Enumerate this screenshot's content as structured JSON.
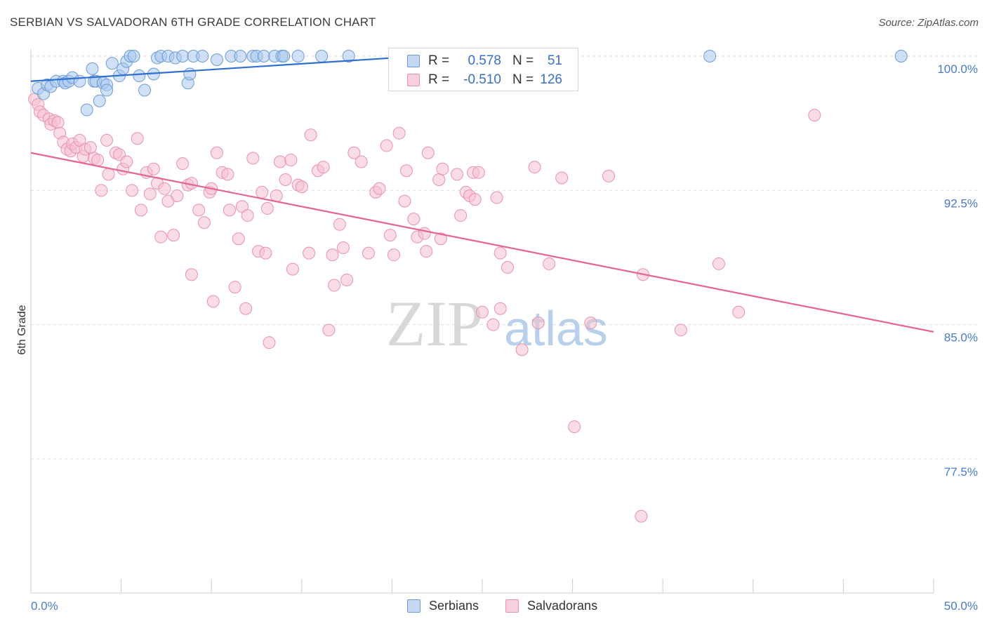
{
  "title": "SERBIAN VS SALVADORAN 6TH GRADE CORRELATION CHART",
  "source": "Source: ZipAtlas.com",
  "watermark": {
    "zip": "ZIP",
    "atlas": "atlas"
  },
  "colors": {
    "serbians_fill": "#aac8ee",
    "serbians_stroke": "#6f9ad8",
    "serbians_line": "#2f6fd0",
    "salvadorans_fill": "#f5bfd0",
    "salvadorans_stroke": "#e792ae",
    "salvadorans_line": "#e5658f",
    "grid": "#dedede",
    "axis": "#cccccc",
    "tick_text": "#4a7bc8"
  },
  "stats": {
    "serbians": {
      "r_label": "R =",
      "r_value": "0.578",
      "n_label": "N =",
      "n_value": "51"
    },
    "salvadorans": {
      "r_label": "R =",
      "r_value": "-0.510",
      "n_label": "N =",
      "n_value": "126"
    }
  },
  "legend": {
    "serbians": "Serbians",
    "salvadorans": "Salvadorans"
  },
  "chart_data": {
    "type": "scatter",
    "title": "SERBIAN VS SALVADORAN 6TH GRADE CORRELATION CHART",
    "xlabel": "",
    "ylabel": "6th Grade",
    "xlim": [
      0,
      50
    ],
    "ylim": [
      70.0,
      101.5
    ],
    "x_tick_labels": [
      {
        "value": 0,
        "label": "0.0%"
      },
      {
        "value": 50,
        "label": "50.0%"
      }
    ],
    "y_tick_labels": [
      {
        "value": 100.0,
        "label": "100.0%"
      },
      {
        "value": 92.5,
        "label": "92.5%"
      },
      {
        "value": 85.0,
        "label": "85.0%"
      },
      {
        "value": 77.5,
        "label": "77.5%"
      }
    ],
    "series": [
      {
        "name": "Serbians",
        "trend": {
          "x": [
            0,
            20
          ],
          "y": [
            98.6,
            99.9
          ]
        },
        "points": [
          [
            0.4,
            98.2
          ],
          [
            0.7,
            97.9
          ],
          [
            0.9,
            98.4
          ],
          [
            1.1,
            98.3
          ],
          [
            1.4,
            98.6
          ],
          [
            1.8,
            98.6
          ],
          [
            1.9,
            98.5
          ],
          [
            2.1,
            98.6
          ],
          [
            2.3,
            98.8
          ],
          [
            2.7,
            98.6
          ],
          [
            3.1,
            97.0
          ],
          [
            3.4,
            99.3
          ],
          [
            3.5,
            98.6
          ],
          [
            3.6,
            98.6
          ],
          [
            3.8,
            97.5
          ],
          [
            4.0,
            98.5
          ],
          [
            4.2,
            98.4
          ],
          [
            4.2,
            98.1
          ],
          [
            4.5,
            99.6
          ],
          [
            4.9,
            98.9
          ],
          [
            5.1,
            99.3
          ],
          [
            5.3,
            99.7
          ],
          [
            5.5,
            100.0
          ],
          [
            5.7,
            100.0
          ],
          [
            6.0,
            98.9
          ],
          [
            6.3,
            98.1
          ],
          [
            6.8,
            99.0
          ],
          [
            7.0,
            99.9
          ],
          [
            7.2,
            100.0
          ],
          [
            7.6,
            100.0
          ],
          [
            8.0,
            99.9
          ],
          [
            8.4,
            100.0
          ],
          [
            8.7,
            98.5
          ],
          [
            8.8,
            99.0
          ],
          [
            9.0,
            100.0
          ],
          [
            9.5,
            100.0
          ],
          [
            10.3,
            99.8
          ],
          [
            11.1,
            100.0
          ],
          [
            11.6,
            100.0
          ],
          [
            12.3,
            100.0
          ],
          [
            12.5,
            100.0
          ],
          [
            12.9,
            100.0
          ],
          [
            13.5,
            100.0
          ],
          [
            13.9,
            100.0
          ],
          [
            14.0,
            100.0
          ],
          [
            14.8,
            100.0
          ],
          [
            16.1,
            100.0
          ],
          [
            17.6,
            100.0
          ],
          [
            20.3,
            100.0
          ],
          [
            37.6,
            100.0
          ],
          [
            48.2,
            100.0
          ]
        ]
      },
      {
        "name": "Salvadorans",
        "trend": {
          "x": [
            0,
            50
          ],
          "y": [
            94.6,
            84.6
          ]
        },
        "points": [
          [
            0.2,
            97.6
          ],
          [
            0.4,
            97.3
          ],
          [
            0.5,
            96.9
          ],
          [
            0.7,
            96.7
          ],
          [
            1.0,
            96.5
          ],
          [
            1.1,
            96.2
          ],
          [
            1.3,
            96.4
          ],
          [
            1.5,
            96.3
          ],
          [
            1.6,
            95.7
          ],
          [
            1.8,
            95.2
          ],
          [
            2.0,
            94.8
          ],
          [
            2.2,
            94.7
          ],
          [
            2.3,
            95.1
          ],
          [
            2.5,
            94.9
          ],
          [
            2.7,
            95.3
          ],
          [
            2.9,
            94.4
          ],
          [
            3.0,
            94.8
          ],
          [
            3.3,
            94.9
          ],
          [
            3.5,
            94.3
          ],
          [
            3.7,
            94.2
          ],
          [
            3.9,
            92.5
          ],
          [
            4.2,
            95.3
          ],
          [
            4.3,
            93.4
          ],
          [
            4.7,
            94.6
          ],
          [
            4.9,
            94.5
          ],
          [
            5.1,
            93.7
          ],
          [
            5.3,
            94.1
          ],
          [
            5.6,
            92.5
          ],
          [
            5.9,
            95.4
          ],
          [
            6.1,
            91.4
          ],
          [
            6.4,
            93.5
          ],
          [
            6.6,
            92.3
          ],
          [
            6.8,
            93.7
          ],
          [
            7.0,
            92.9
          ],
          [
            7.2,
            89.9
          ],
          [
            7.4,
            92.6
          ],
          [
            7.6,
            91.9
          ],
          [
            7.9,
            90.0
          ],
          [
            8.1,
            92.2
          ],
          [
            8.4,
            94.0
          ],
          [
            8.7,
            92.8
          ],
          [
            8.9,
            92.9
          ],
          [
            8.9,
            87.8
          ],
          [
            9.3,
            91.4
          ],
          [
            9.6,
            90.7
          ],
          [
            9.9,
            92.4
          ],
          [
            10.0,
            92.6
          ],
          [
            10.1,
            86.3
          ],
          [
            10.3,
            94.6
          ],
          [
            10.6,
            93.5
          ],
          [
            10.9,
            93.4
          ],
          [
            11.0,
            91.4
          ],
          [
            11.3,
            87.1
          ],
          [
            11.5,
            89.8
          ],
          [
            11.7,
            91.6
          ],
          [
            11.9,
            85.9
          ],
          [
            12.0,
            91.1
          ],
          [
            12.3,
            94.3
          ],
          [
            12.6,
            89.1
          ],
          [
            12.8,
            92.4
          ],
          [
            13.0,
            89.0
          ],
          [
            13.1,
            91.5
          ],
          [
            13.2,
            84.0
          ],
          [
            13.6,
            92.2
          ],
          [
            13.8,
            94.1
          ],
          [
            14.1,
            93.1
          ],
          [
            14.4,
            94.2
          ],
          [
            14.5,
            88.1
          ],
          [
            14.8,
            92.8
          ],
          [
            15.0,
            92.7
          ],
          [
            15.4,
            89.0
          ],
          [
            15.5,
            95.6
          ],
          [
            15.9,
            93.6
          ],
          [
            16.2,
            93.8
          ],
          [
            16.5,
            84.7
          ],
          [
            16.7,
            88.9
          ],
          [
            16.8,
            87.2
          ],
          [
            17.1,
            90.6
          ],
          [
            17.3,
            89.3
          ],
          [
            17.5,
            87.5
          ],
          [
            17.9,
            94.6
          ],
          [
            18.3,
            94.1
          ],
          [
            18.7,
            89.0
          ],
          [
            19.1,
            92.4
          ],
          [
            19.3,
            92.6
          ],
          [
            19.7,
            95.0
          ],
          [
            19.9,
            90.0
          ],
          [
            20.1,
            88.9
          ],
          [
            20.4,
            95.7
          ],
          [
            20.7,
            91.9
          ],
          [
            20.8,
            93.6
          ],
          [
            21.2,
            90.9
          ],
          [
            21.4,
            89.9
          ],
          [
            21.8,
            90.1
          ],
          [
            21.9,
            89.1
          ],
          [
            22.0,
            94.6
          ],
          [
            22.6,
            93.1
          ],
          [
            22.7,
            89.8
          ],
          [
            22.8,
            93.7
          ],
          [
            23.6,
            93.4
          ],
          [
            23.8,
            91.1
          ],
          [
            24.1,
            92.4
          ],
          [
            24.3,
            92.2
          ],
          [
            24.5,
            93.5
          ],
          [
            24.6,
            92.0
          ],
          [
            24.8,
            93.5
          ],
          [
            25.0,
            85.7
          ],
          [
            25.6,
            85.0
          ],
          [
            25.8,
            92.1
          ],
          [
            26.0,
            89.0
          ],
          [
            26.0,
            85.9
          ],
          [
            26.4,
            88.2
          ],
          [
            27.2,
            83.6
          ],
          [
            27.9,
            93.8
          ],
          [
            28.1,
            85.1
          ],
          [
            28.7,
            88.4
          ],
          [
            29.4,
            93.2
          ],
          [
            30.1,
            79.3
          ],
          [
            31.0,
            85.1
          ],
          [
            32.0,
            93.3
          ],
          [
            33.8,
            74.3
          ],
          [
            33.9,
            87.8
          ],
          [
            36.0,
            84.7
          ],
          [
            38.1,
            88.4
          ],
          [
            39.2,
            85.7
          ],
          [
            43.4,
            96.7
          ]
        ]
      }
    ]
  }
}
